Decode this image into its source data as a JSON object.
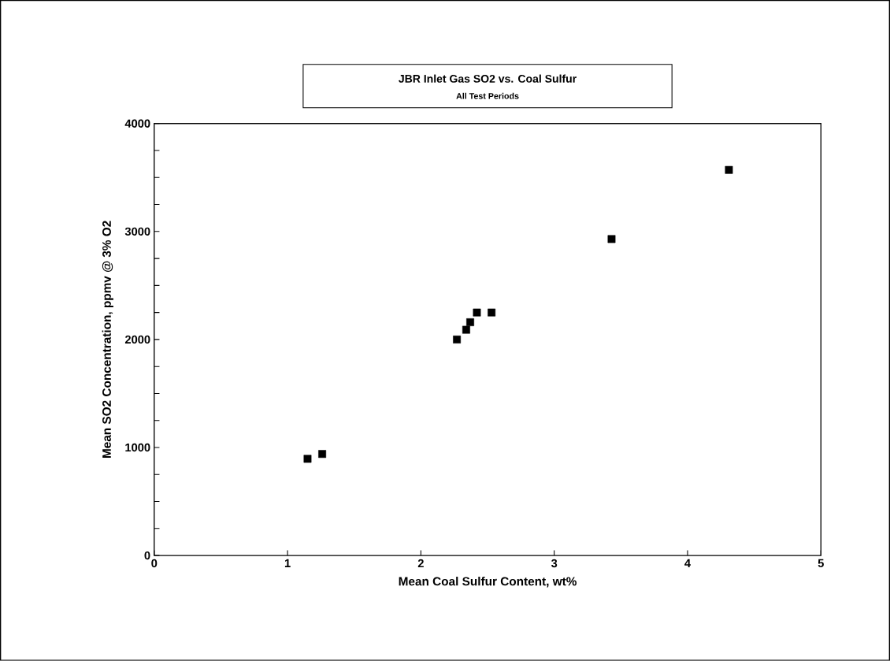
{
  "chart_data": {
    "type": "scatter",
    "title": "JBR Inlet Gas SO2 vs. Coal Sulfur",
    "subtitle": "All Test Periods",
    "xlabel": "Mean Coal Sulfur Content, wt%",
    "ylabel": "Mean SO2 Concentration, ppmv @ 3% O2",
    "x": [
      1.15,
      1.26,
      2.27,
      2.34,
      2.37,
      2.42,
      2.53,
      3.43,
      4.31
    ],
    "values": [
      895,
      940,
      2000,
      2090,
      2160,
      2250,
      2250,
      2930,
      3570
    ],
    "color": "#000000",
    "marker": "square",
    "xlim": [
      0,
      5
    ],
    "xticks": [
      0,
      1,
      2,
      3,
      4,
      5
    ],
    "ylim": [
      0,
      4000
    ],
    "yticks": [
      0,
      {
        "value": 250,
        "label": null
      },
      {
        "value": 500,
        "label": null
      },
      {
        "value": 750,
        "label": null
      },
      1000,
      {
        "value": 1250,
        "label": null
      },
      {
        "value": 1500,
        "label": null
      },
      {
        "value": 1750,
        "label": null
      },
      2000,
      {
        "value": 2250,
        "label": null
      },
      {
        "value": 2500,
        "label": null
      },
      {
        "value": 2750,
        "label": null
      },
      3000,
      {
        "value": 3250,
        "label": null
      },
      {
        "value": 3500,
        "label": null
      },
      {
        "value": 3750,
        "label": null
      },
      4000
    ]
  }
}
